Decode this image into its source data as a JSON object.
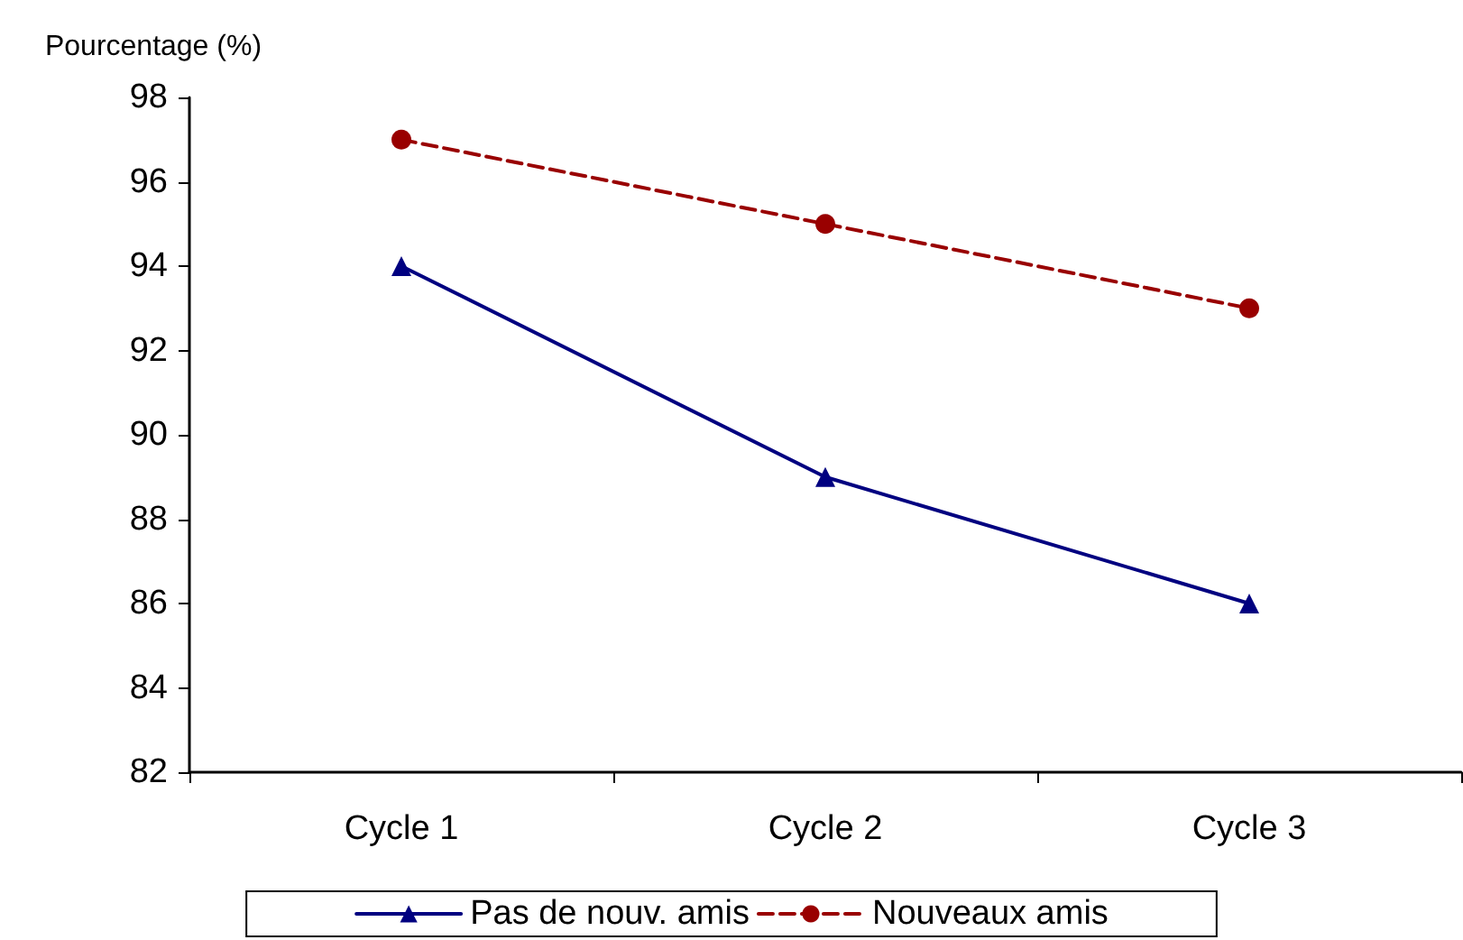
{
  "chart_data": {
    "type": "line",
    "ylabel": "Pourcentage (%)",
    "categories": [
      "Cycle 1",
      "Cycle 2",
      "Cycle 3"
    ],
    "series": [
      {
        "name": "Pas de nouv. amis",
        "color": "#000080",
        "values": [
          94,
          89,
          86
        ],
        "marker": "triangle",
        "line_style": "solid"
      },
      {
        "name": "Nouveaux amis",
        "color": "#990000",
        "values": [
          97,
          95,
          93
        ],
        "marker": "circle",
        "line_style": "dashed"
      }
    ],
    "ylim": [
      82,
      98
    ],
    "yticks": [
      82,
      84,
      86,
      88,
      90,
      92,
      94,
      96,
      98
    ],
    "grid": false,
    "legend": "bottom"
  }
}
